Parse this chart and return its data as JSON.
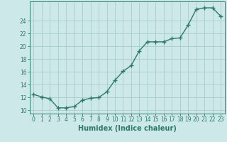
{
  "x": [
    0,
    1,
    2,
    3,
    4,
    5,
    6,
    7,
    8,
    9,
    10,
    11,
    12,
    13,
    14,
    15,
    16,
    17,
    18,
    19,
    20,
    21,
    22,
    23
  ],
  "y": [
    12.5,
    12.1,
    11.8,
    10.4,
    10.4,
    10.6,
    11.6,
    11.9,
    12.0,
    12.9,
    14.7,
    16.1,
    17.0,
    19.3,
    20.7,
    20.7,
    20.7,
    21.2,
    21.3,
    23.3,
    25.8,
    26.0,
    26.0,
    24.7
  ],
  "line_color": "#2d7a6a",
  "marker": "+",
  "marker_size": 4,
  "bg_color": "#cce8e8",
  "grid_color": "#aacccc",
  "xlabel": "Humidex (Indice chaleur)",
  "xlim": [
    -0.5,
    23.5
  ],
  "ylim": [
    9.5,
    27
  ],
  "yticks": [
    10,
    12,
    14,
    16,
    18,
    20,
    22,
    24
  ],
  "xticks": [
    0,
    1,
    2,
    3,
    4,
    5,
    6,
    7,
    8,
    9,
    10,
    11,
    12,
    13,
    14,
    15,
    16,
    17,
    18,
    19,
    20,
    21,
    22,
    23
  ],
  "tick_label_fontsize": 5.5,
  "xlabel_fontsize": 7.0,
  "line_width": 1.0,
  "marker_linewidth": 1.0
}
